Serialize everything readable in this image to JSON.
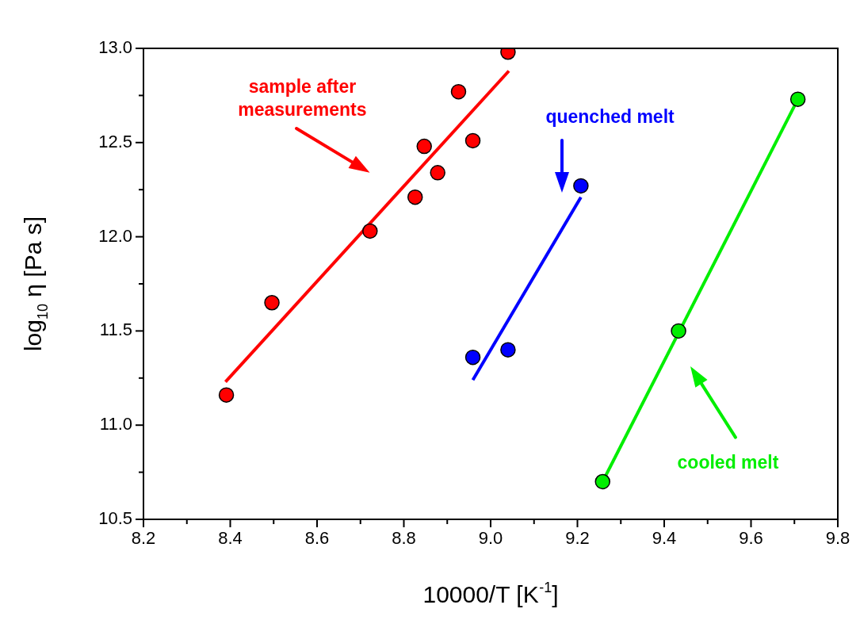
{
  "chart_data": {
    "type": "scatter",
    "xlabel": "10000/T [K$^{-1}$]",
    "ylabel": "log$_{10}$ η [Pa s]",
    "xlim": [
      8.2,
      9.8
    ],
    "ylim": [
      10.5,
      13.0
    ],
    "xticks": [
      8.2,
      {
        "value": 8.3,
        "label": null
      },
      8.4,
      {
        "value": 8.5,
        "label": null
      },
      8.6,
      {
        "value": 8.7,
        "label": null
      },
      8.8,
      {
        "value": 8.9,
        "label": null
      },
      {
        "value": 9,
        "label": "9.0"
      },
      {
        "value": 9.1,
        "label": null
      },
      9.2,
      {
        "value": 9.3,
        "label": null
      },
      9.4,
      {
        "value": 9.5,
        "label": null
      },
      9.6,
      {
        "value": 9.7,
        "label": null
      },
      9.8
    ],
    "yticks": [
      10.5,
      {
        "value": 10.75,
        "label": null
      },
      {
        "value": 11,
        "label": "11.0"
      },
      {
        "value": 11.25,
        "label": null
      },
      11.5,
      {
        "value": 11.75,
        "label": null
      },
      {
        "value": 12,
        "label": "12.0"
      },
      {
        "value": 12.25,
        "label": null
      },
      12.5,
      {
        "value": 12.75,
        "label": null
      },
      {
        "value": 13,
        "label": "13.0"
      }
    ],
    "grid": false,
    "legend": false,
    "marker": "circle",
    "series": [
      {
        "color": "#ff0000",
        "x": [
          8.391,
          8.496,
          8.722,
          8.826,
          8.847,
          8.878,
          8.926,
          8.959,
          9.04
        ],
        "values": [
          11.16,
          11.65,
          12.03,
          12.21,
          12.48,
          12.34,
          12.77,
          12.51,
          12.98
        ]
      },
      {
        "type": "line",
        "color": "#ff0000",
        "marker": "none",
        "x": [
          8.389,
          9.042
        ],
        "values": [
          11.23,
          12.88
        ]
      },
      {
        "color": "#0000ff",
        "x": [
          8.959,
          9.04,
          9.208
        ],
        "values": [
          11.36,
          11.4,
          12.27
        ]
      },
      {
        "type": "line",
        "color": "#0000ff",
        "marker": "none",
        "x": [
          8.959,
          9.208
        ],
        "values": [
          11.24,
          12.21
        ]
      },
      {
        "color": "#00ee00",
        "x": [
          9.258,
          9.433,
          9.708
        ],
        "values": [
          10.7,
          11.5,
          12.73
        ]
      },
      {
        "type": "line",
        "color": "#00ee00",
        "marker": "none",
        "x": [
          9.258,
          9.708
        ],
        "values": [
          10.7,
          12.73
        ]
      }
    ],
    "annotations": [
      "sample after measurements",
      "quenched melt",
      "cooled melt"
    ]
  }
}
